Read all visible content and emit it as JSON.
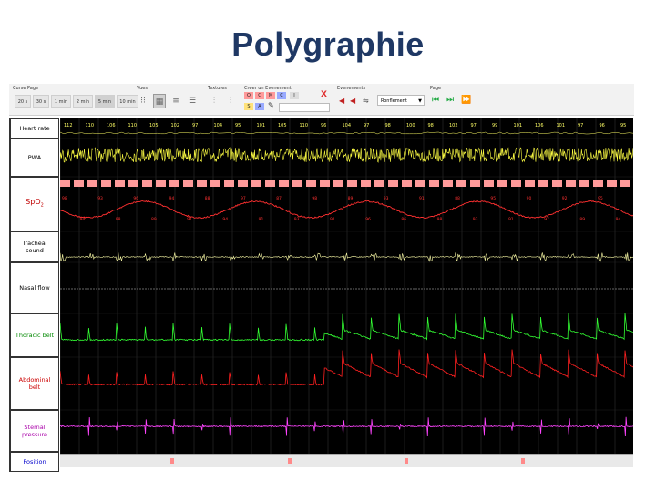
{
  "slide": {
    "title": "Polygraphie"
  },
  "toolbar": {
    "cursor_page": {
      "title": "Curse Page",
      "buttons": [
        "20 s",
        "30 s",
        "1 min",
        "2 min",
        "5 min",
        "10 min"
      ]
    },
    "view": {
      "title": "Vues"
    },
    "textures": {
      "title": "Textures"
    },
    "color_events": {
      "title": "Creer un Evenement",
      "chips": [
        "O",
        "C",
        "M",
        "C",
        "J",
        "S",
        "A"
      ],
      "close": "X"
    },
    "events": {
      "title": "Evenements",
      "select_value": "Ronflement"
    },
    "page": {
      "title": "Page"
    }
  },
  "tracks": {
    "heart_rate": "Heart rate",
    "pwa": "PWA",
    "spo2": "SpO",
    "spo2_sub": "2",
    "tracheal": "Tracheal sound",
    "nasal": "Nasal flow",
    "thoracic": "Thoracic belt",
    "abdominal": "Abdominal belt",
    "sternal": "Sternal pressure",
    "position": "Position"
  },
  "heart_rate_values": [
    "112",
    "110",
    "106",
    "110",
    "105",
    "102",
    "97",
    "104",
    "95",
    "101",
    "105",
    "110",
    "96",
    "104",
    "97",
    "98",
    "100",
    "98",
    "102",
    "97",
    "99",
    "101",
    "106",
    "101",
    "97",
    "96",
    "95"
  ],
  "spo2_values": [
    "98",
    "94",
    "93",
    "98",
    "96",
    "89",
    "94",
    "91",
    "88",
    "94",
    "97",
    "91",
    "87",
    "93",
    "98",
    "91",
    "89",
    "96",
    "93",
    "86",
    "91",
    "98",
    "88",
    "93",
    "95",
    "91",
    "90",
    "97",
    "92",
    "89",
    "95",
    "94"
  ],
  "colors": {
    "heart": "#ffff66",
    "pwa": "#ffff44",
    "band": "#ff9a9a",
    "spo2": "#ff3030",
    "tracheal": "#ffffaa",
    "nasal": "#cccccc",
    "thoracic": "#33ff33",
    "abdominal": "#ff2020",
    "sternal": "#ff44ff",
    "title": "#1f3864"
  }
}
